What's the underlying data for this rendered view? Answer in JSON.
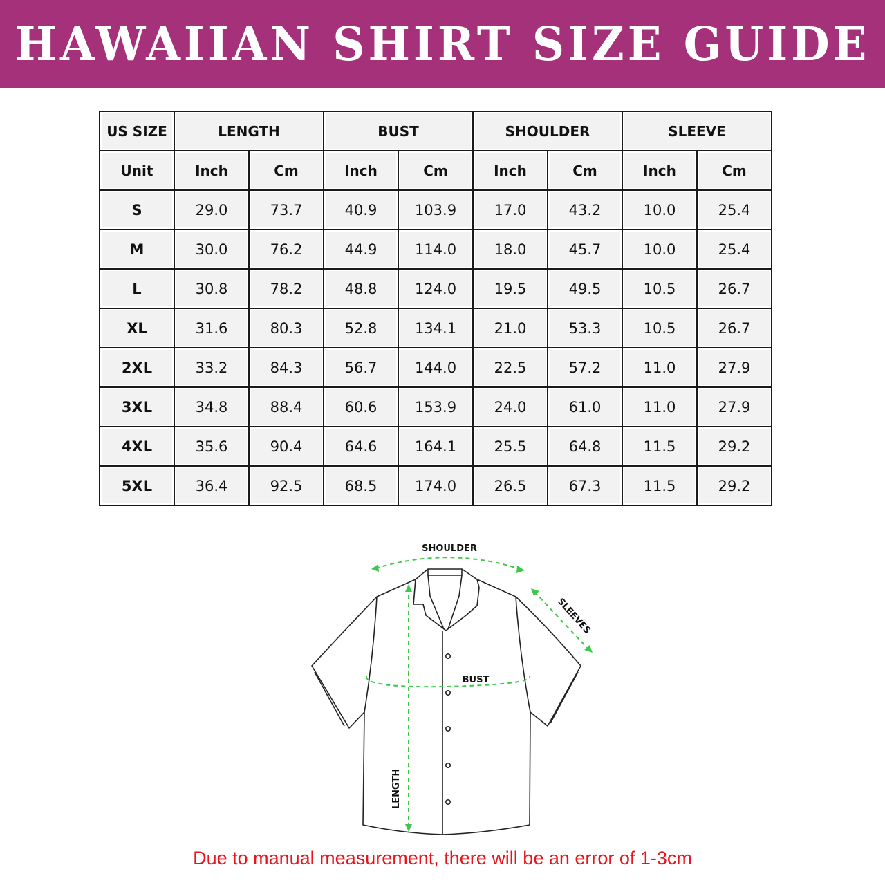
{
  "title": "HAWAIIAN SHIRT SIZE GUIDE",
  "colors": {
    "accent": "#a5317a",
    "measure_line": "#3cc84a",
    "note": "#e8141c"
  },
  "table": {
    "groups": [
      "US SIZE",
      "LENGTH",
      "BUST",
      "SHOULDER",
      "SLEEVE"
    ],
    "unit_row": [
      "Unit",
      "Inch",
      "Cm",
      "Inch",
      "Cm",
      "Inch",
      "Cm",
      "Inch",
      "Cm"
    ],
    "rows": [
      [
        "S",
        "29.0",
        "73.7",
        "40.9",
        "103.9",
        "17.0",
        "43.2",
        "10.0",
        "25.4"
      ],
      [
        "M",
        "30.0",
        "76.2",
        "44.9",
        "114.0",
        "18.0",
        "45.7",
        "10.0",
        "25.4"
      ],
      [
        "L",
        "30.8",
        "78.2",
        "48.8",
        "124.0",
        "19.5",
        "49.5",
        "10.5",
        "26.7"
      ],
      [
        "XL",
        "31.6",
        "80.3",
        "52.8",
        "134.1",
        "21.0",
        "53.3",
        "10.5",
        "26.7"
      ],
      [
        "2XL",
        "33.2",
        "84.3",
        "56.7",
        "144.0",
        "22.5",
        "57.2",
        "11.0",
        "27.9"
      ],
      [
        "3XL",
        "34.8",
        "88.4",
        "60.6",
        "153.9",
        "24.0",
        "61.0",
        "11.0",
        "27.9"
      ],
      [
        "4XL",
        "35.6",
        "90.4",
        "64.6",
        "164.1",
        "25.5",
        "64.8",
        "11.5",
        "29.2"
      ],
      [
        "5XL",
        "36.4",
        "92.5",
        "68.5",
        "174.0",
        "26.5",
        "67.3",
        "11.5",
        "29.2"
      ]
    ]
  },
  "diagram": {
    "shoulder": "SHOULDER",
    "sleeves": "SLEEVES",
    "bust": "BUST",
    "length": "LENGTH"
  },
  "note": "Due to manual measurement, there will be an error of 1-3cm"
}
